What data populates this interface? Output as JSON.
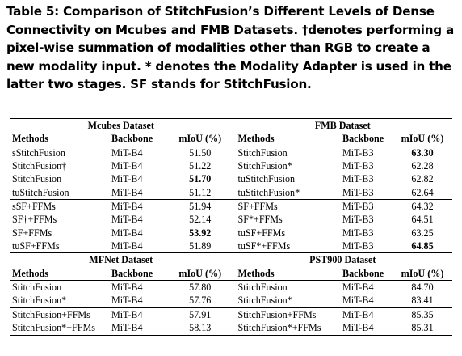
{
  "caption": "Table 5: Comparison of StitchFusion’s Different Levels of Dense Connectivity on Mcubes and FMB Datasets. †denotes performing a pixel-wise summation of modalities other than RGB to create a new modality input. * denotes the Modality Adapter is used in the latter two stages. SF stands for StitchFusion.",
  "sections": [
    {
      "left_title": "Mcubes Dataset",
      "right_title": "FMB Dataset",
      "headers": [
        "Methods",
        "Backbone",
        "mIoU (%)",
        "Methods",
        "Backbone",
        "mIoU (%)"
      ],
      "groups": [
        [
          [
            "sStitchFusion",
            "MiT-B4",
            "51.50",
            "StitchFusion",
            "MiT-B3",
            "63.30"
          ],
          [
            "StitchFusion†",
            "MiT-B4",
            "51.22",
            "StitchFusion*",
            "MiT-B3",
            "62.28"
          ],
          [
            "StitchFusion",
            "MiT-B4",
            "51.70",
            "tuStitchFusion",
            "MiT-B3",
            "62.82"
          ],
          [
            "tuStitchFusion",
            "MiT-B4",
            "51.12",
            "tuStitchFusion*",
            "MiT-B3",
            "62.64"
          ]
        ],
        [
          [
            "sSF+FFMs",
            "MiT-B4",
            "51.94",
            "SF+FFMs",
            "MiT-B3",
            "64.32"
          ],
          [
            "SF†+FFMs",
            "MiT-B4",
            "52.14",
            "SF*+FFMs",
            "MiT-B3",
            "64.51"
          ],
          [
            "SF+FFMs",
            "MiT-B4",
            "53.92",
            "tuSF+FFMs",
            "MiT-B3",
            "63.25"
          ],
          [
            "tuSF+FFMs",
            "MiT-B4",
            "51.89",
            "tuSF*+FFMs",
            "MiT-B3",
            "64.85"
          ]
        ]
      ],
      "bold_cells": [
        "0-0-5",
        "0-2-2",
        "1-2-2",
        "1-3-5"
      ]
    },
    {
      "left_title": "MFNet Dataset",
      "right_title": "PST900 Dataset",
      "headers": [
        "Methods",
        "Backbone",
        "mIoU (%)",
        "Methods",
        "Backbone",
        "mIoU (%)"
      ],
      "groups": [
        [
          [
            "StitchFusion",
            "MiT-B4",
            "57.80",
            "StitchFusion",
            "MiT-B4",
            "84.70"
          ],
          [
            "StitchFusion*",
            "MiT-B4",
            "57.76",
            "StitchFusion*",
            "MiT-B4",
            "83.41"
          ]
        ],
        [
          [
            "StitchFusion+FFMs",
            "MiT-B4",
            "57.91",
            "StitchFusion+FFMs",
            "MiT-B4",
            "85.35"
          ],
          [
            "StitchFusion*+FFMs",
            "MiT-B4",
            "58.13",
            "StitchFusion*+FFMs",
            "MiT-B4",
            "85.31"
          ]
        ]
      ],
      "bold_cells": []
    }
  ]
}
